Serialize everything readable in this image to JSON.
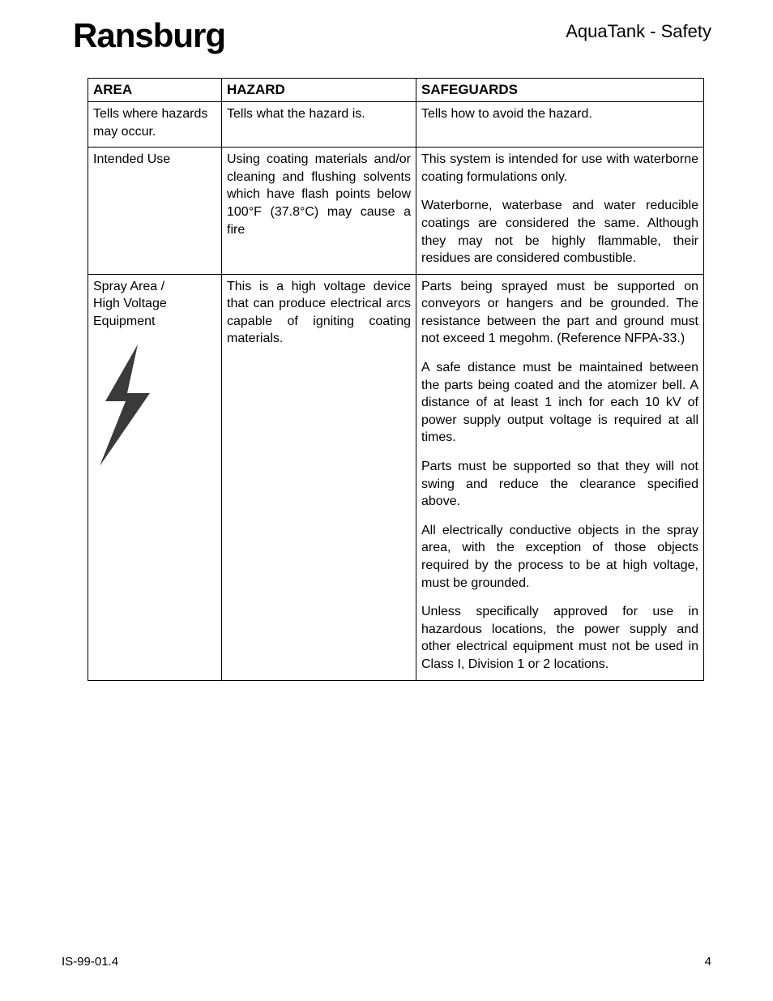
{
  "header": {
    "brand": "Ransburg",
    "doc_title": "AquaTank - Safety"
  },
  "table": {
    "columns": {
      "area": "AREA",
      "hazard": "HAZARD",
      "safeguards": "SAFEGUARDS"
    },
    "desc": {
      "area": "Tells where hazards may occur.",
      "hazard": "Tells what the hazard is.",
      "safeguards": "Tells how to avoid the hazard."
    },
    "row_intended": {
      "area": "Intended Use",
      "hazard": "Using coating materials and/or cleaning and flushing solvents which have flash points below 100°F (37.8°C) may cause a fire",
      "safe_p1": "This system is intended for use with waterborne coating formulations only.",
      "safe_p2": "Waterborne, waterbase and water reducible coatings are considered the same.  Although they may not be highly flammable, their residues are considered combustible."
    },
    "row_spray": {
      "area": "Spray Area /\nHigh Voltage Equipment",
      "hazard": "This is a high voltage device that can produce electrical arcs capable of igniting coating materials.",
      "safe_p1": "Parts being sprayed must be supported on conveyors or hangers and be grounded.  The resistance between the part and ground must not exceed 1 megohm. (Reference NFPA-33.)",
      "safe_p2": "A safe distance must be maintained between the parts being coated and the atomizer bell.  A distance of at least 1 inch for each 10 kV of power supply output voltage is required at all times.",
      "safe_p3": "Parts must be supported so that they will not swing and reduce the clearance specified above.",
      "safe_p4": "All electrically conductive objects in the spray area, with the exception of those objects required by the process to be at high voltage, must be grounded.",
      "safe_p5": "Unless specifically approved for use in hazardous locations, the power supply and other electrical equipment must not be used in Class I, Division 1 or 2 locations."
    }
  },
  "footer": {
    "doc_id": "IS-99-01.4",
    "page_num": "4"
  },
  "colors": {
    "text": "#000000",
    "bg": "#ffffff",
    "border": "#000000",
    "bolt_fill": "#3a3a3a"
  }
}
